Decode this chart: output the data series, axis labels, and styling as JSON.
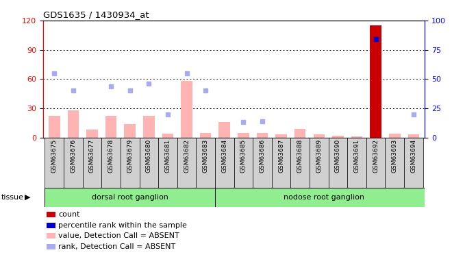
{
  "title": "GDS1635 / 1430934_at",
  "samples": [
    "GSM63675",
    "GSM63676",
    "GSM63677",
    "GSM63678",
    "GSM63679",
    "GSM63680",
    "GSM63681",
    "GSM63682",
    "GSM63683",
    "GSM63684",
    "GSM63685",
    "GSM63686",
    "GSM63687",
    "GSM63688",
    "GSM63689",
    "GSM63690",
    "GSM63691",
    "GSM63692",
    "GSM63693",
    "GSM63694"
  ],
  "values_absent": [
    22,
    28,
    8,
    22,
    14,
    22,
    4,
    58,
    5,
    16,
    5,
    5,
    3,
    9,
    3,
    2,
    1,
    0,
    4,
    3
  ],
  "ranks_absent": [
    55,
    40,
    null,
    44,
    40,
    46,
    20,
    55,
    40,
    null,
    13,
    14,
    null,
    null,
    null,
    null,
    null,
    null,
    null,
    20
  ],
  "value_special": [
    null,
    null,
    null,
    null,
    null,
    null,
    null,
    null,
    null,
    null,
    null,
    null,
    null,
    null,
    null,
    null,
    null,
    115,
    null,
    null
  ],
  "rank_special": [
    null,
    null,
    null,
    null,
    null,
    null,
    null,
    null,
    null,
    null,
    null,
    null,
    null,
    null,
    null,
    null,
    null,
    84,
    null,
    null
  ],
  "groups": [
    {
      "label": "dorsal root ganglion",
      "start": 0,
      "end": 9,
      "color": "#90ee90"
    },
    {
      "label": "nodose root ganglion",
      "start": 9,
      "end": 20,
      "color": "#90ee90"
    }
  ],
  "left_ylim": [
    0,
    120
  ],
  "right_ylim": [
    0,
    100
  ],
  "left_yticks": [
    0,
    30,
    60,
    90,
    120
  ],
  "right_yticks": [
    0,
    25,
    50,
    75,
    100
  ],
  "bar_color_absent": "#ffb3b3",
  "bar_color_special": "#cc0000",
  "rank_color_absent": "#aaaaee",
  "rank_color_special": "#0000cc",
  "bg_color": "#ffffff",
  "xticklabel_bg": "#d0d0d0",
  "tissue_label": "tissue",
  "legend_items": [
    {
      "label": "count",
      "color": "#cc0000"
    },
    {
      "label": "percentile rank within the sample",
      "color": "#0000cc"
    },
    {
      "label": "value, Detection Call = ABSENT",
      "color": "#ffb3b3"
    },
    {
      "label": "rank, Detection Call = ABSENT",
      "color": "#aaaaee"
    }
  ]
}
